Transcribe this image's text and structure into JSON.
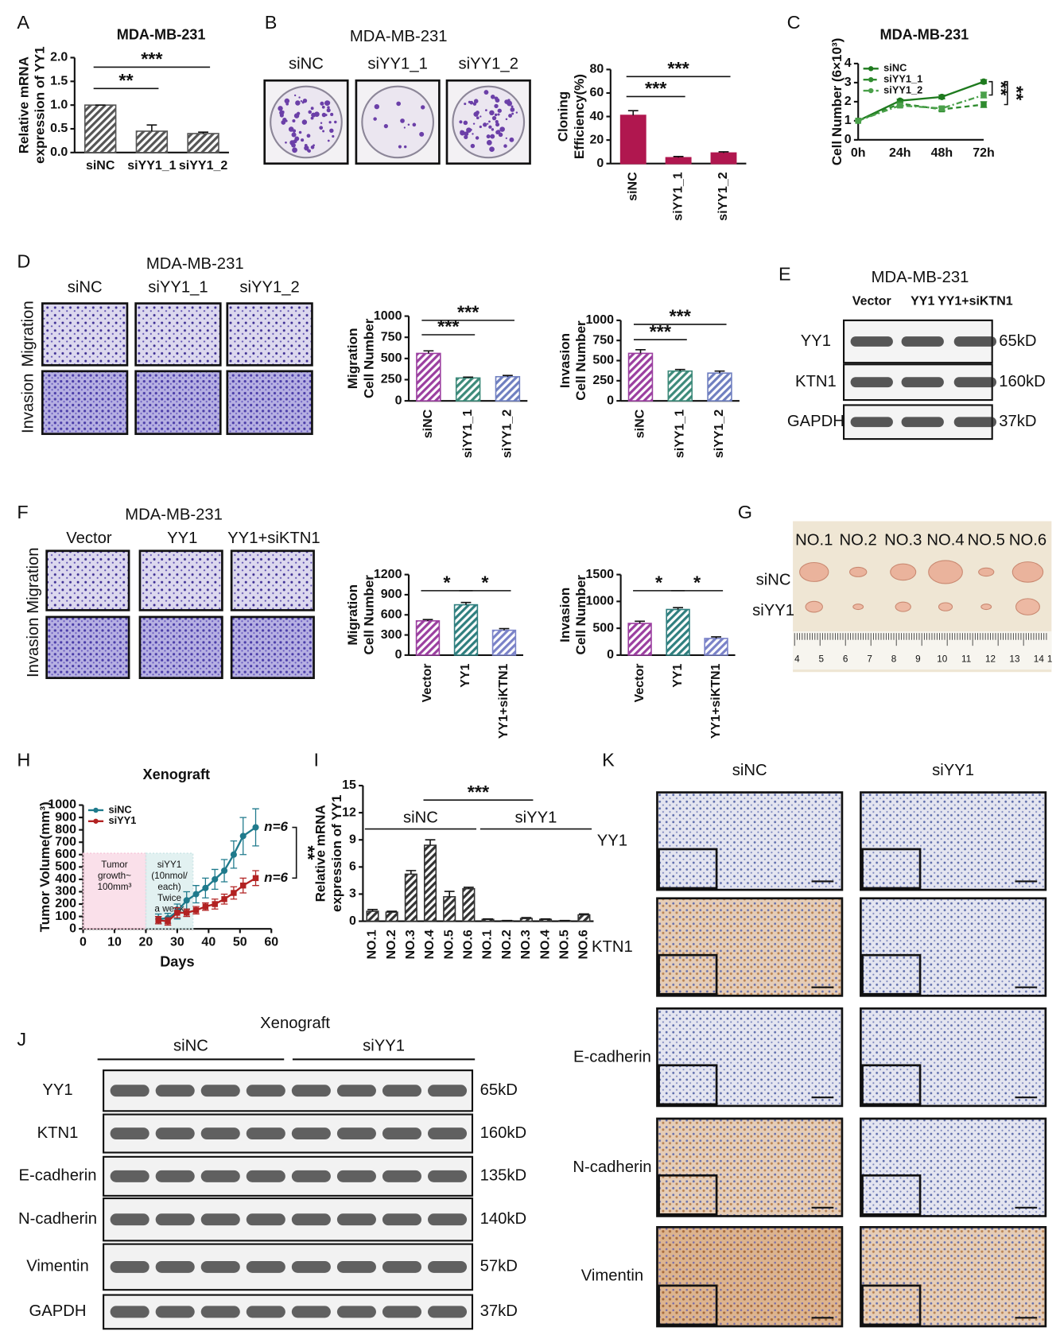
{
  "chart_data": [
    {
      "type": "bar",
      "title": "MDA-MB-231",
      "ylabel": [
        "Relative mRNA",
        "expression of YY1"
      ],
      "categories": [
        "siNC",
        "siYY1_1",
        "siYY1_2"
      ],
      "values": [
        1,
        0.45,
        0.4
      ],
      "errors": [
        0,
        0.13,
        0.03
      ],
      "color": "#555555",
      "hatched": true,
      "ylim": [
        0,
        2
      ],
      "yticks": [
        {
          "value": 0,
          "label": "0.0"
        },
        {
          "value": 0.5,
          "label": "0.5"
        },
        {
          "value": 1,
          "label": "1.0"
        },
        {
          "value": 1.5,
          "label": "1.5"
        },
        {
          "value": 2,
          "label": "2.0"
        }
      ],
      "annotations": [
        "**",
        "***"
      ]
    },
    {
      "type": "bar",
      "ylabel": [
        "Cloning",
        "Efficiency(%)"
      ],
      "categories": [
        "siNC",
        "siYY1_1",
        "siYY1_2"
      ],
      "values": [
        41,
        5,
        9
      ],
      "errors": [
        4,
        1,
        1
      ],
      "color": "#b0174f",
      "hatched": false,
      "ylim": [
        0,
        80
      ],
      "yticks": [
        0,
        20,
        40,
        60,
        80
      ],
      "annotations": [
        "***",
        "***"
      ]
    },
    {
      "type": "line",
      "title": "MDA-MB-231",
      "ylabel": "Cell Number (6×10³)",
      "categories": [
        "0h",
        "24h",
        "48h",
        "72h"
      ],
      "legend": "upper left",
      "series": [
        {
          "name": "siNC",
          "color": "#1e7a1e",
          "dash": "solid",
          "values": [
            1,
            2.05,
            2.25,
            3.05
          ],
          "errors": [
            0,
            0.08,
            0.1,
            0.1
          ]
        },
        {
          "name": "siYY1_1",
          "color": "#2e8b2e",
          "dash": "dashed",
          "values": [
            1,
            1.9,
            1.6,
            1.85
          ],
          "errors": [
            0,
            0.08,
            0.1,
            0.15
          ]
        },
        {
          "name": "siYY1_2",
          "color": "#4aa04a",
          "dash": "dashdot",
          "values": [
            1,
            1.8,
            1.65,
            2.35
          ],
          "errors": [
            0,
            0.1,
            0.1,
            0.15
          ]
        }
      ],
      "ylim": [
        0,
        4
      ],
      "yticks": [
        0,
        1,
        2,
        3,
        4
      ],
      "annotations": [
        "**",
        "**"
      ]
    },
    {
      "type": "bar",
      "ylabel": [
        "Migration",
        "Cell Number"
      ],
      "categories": [
        "siNC",
        "siYY1_1",
        "siYY1_2"
      ],
      "values": [
        560,
        270,
        285
      ],
      "errors": [
        30,
        10,
        15
      ],
      "colors": [
        "#9b3fa0",
        "#3d8a7a",
        "#6f7fc0"
      ],
      "hatched": true,
      "ylim": [
        0,
        1000
      ],
      "yticks": [
        0,
        250,
        500,
        750,
        1000
      ],
      "annotations": [
        "***",
        "***"
      ]
    },
    {
      "type": "bar",
      "ylabel": [
        "Invasion",
        "Cell Number"
      ],
      "categories": [
        "siNC",
        "siYY1_1",
        "siYY1_2"
      ],
      "values": [
        590,
        370,
        345
      ],
      "errors": [
        45,
        20,
        25
      ],
      "colors": [
        "#9b3fa0",
        "#3d8a7a",
        "#6f7fc0"
      ],
      "hatched": true,
      "ylim": [
        0,
        1000
      ],
      "yticks": [
        0,
        250,
        500,
        750,
        1000
      ],
      "annotations": [
        "***",
        "***"
      ]
    },
    {
      "type": "bar",
      "ylabel": [
        "Migration",
        "Cell Number"
      ],
      "categories": [
        "Vector",
        "YY1",
        "YY1+siKTN1"
      ],
      "values": [
        510,
        750,
        370
      ],
      "errors": [
        20,
        35,
        25
      ],
      "colors": [
        "#9b3fa0",
        "#2f7f7f",
        "#7a82c8"
      ],
      "hatched": true,
      "ylim": [
        0,
        1200
      ],
      "yticks": [
        0,
        300,
        600,
        900,
        1200
      ],
      "annotations": [
        "*",
        "*"
      ]
    },
    {
      "type": "bar",
      "ylabel": [
        "Invasion",
        "Cell Number"
      ],
      "categories": [
        "Vector",
        "YY1",
        "YY1+siKTN1"
      ],
      "values": [
        590,
        850,
        310
      ],
      "errors": [
        40,
        35,
        30
      ],
      "colors": [
        "#9b3fa0",
        "#2f7f7f",
        "#7a82c8"
      ],
      "hatched": true,
      "ylim": [
        0,
        1500
      ],
      "yticks": [
        0,
        500,
        1000,
        1500
      ],
      "annotations": [
        "*",
        "*"
      ]
    },
    {
      "type": "line",
      "title": "Xenograft",
      "ylabel": "Tumor Volume(mm³)",
      "xlabel": "Days",
      "legend": "upper left",
      "x": [
        24,
        27,
        30,
        33,
        36,
        39,
        42,
        45,
        48,
        51,
        55
      ],
      "series": [
        {
          "name": "siNC",
          "color": "#1f7a8c",
          "dash": "solid",
          "values": [
            80,
            85,
            140,
            230,
            280,
            330,
            400,
            470,
            600,
            750,
            820
          ],
          "errors": [
            40,
            40,
            60,
            70,
            70,
            80,
            80,
            90,
            110,
            150,
            150
          ]
        },
        {
          "name": "siYY1",
          "color": "#b22222",
          "dash": "solid",
          "values": [
            70,
            60,
            130,
            130,
            150,
            180,
            200,
            240,
            290,
            350,
            410
          ],
          "errors": [
            30,
            30,
            40,
            30,
            30,
            30,
            40,
            40,
            50,
            60,
            60
          ]
        }
      ],
      "xlim": [
        0,
        60
      ],
      "xticks": [
        0,
        10,
        20,
        30,
        40,
        50,
        60
      ],
      "ylim": [
        0,
        1000
      ],
      "yticks": [
        0,
        100,
        200,
        300,
        400,
        500,
        600,
        700,
        800,
        900,
        1000
      ],
      "regions": [
        {
          "x": [
            0,
            20
          ],
          "y": [
            0,
            610
          ],
          "color": "#f6cbdc",
          "text": [
            "Tumor",
            "growth~",
            "100mm³"
          ]
        },
        {
          "x": [
            20,
            35
          ],
          "y": [
            0,
            610
          ],
          "color": "#cfe7e8",
          "text": [
            "siYY1",
            "(10nmol/",
            "each)",
            "Twice",
            "a week"
          ]
        }
      ],
      "annotations": [
        "n=6",
        "n=6",
        "**"
      ]
    },
    {
      "type": "bar",
      "ylabel": [
        "Relative mRNA",
        "expression of YY1"
      ],
      "categories": [
        "NO.1",
        "NO.2",
        "NO.3",
        "NO.4",
        "NO.5",
        "NO.6",
        "NO.1",
        "NO.2",
        "NO.3",
        "NO.4",
        "NO.5",
        "NO.6"
      ],
      "values": [
        1.1,
        1.0,
        5.2,
        8.4,
        2.7,
        3.6,
        0.2,
        0.05,
        0.3,
        0.2,
        0.05,
        0.7
      ],
      "errors": [
        0.2,
        0.1,
        0.4,
        0.6,
        0.6,
        0.15,
        0.05,
        0.03,
        0.1,
        0.05,
        0.03,
        0.1
      ],
      "color": "#333333",
      "hatched": true,
      "ylim": [
        0,
        15
      ],
      "yticks": [
        0,
        3,
        6,
        9,
        12,
        15
      ],
      "group_labels": [
        "siNC",
        "siYY1"
      ],
      "annotations": [
        "***"
      ]
    }
  ],
  "panels": {
    "letters": [
      "A",
      "B",
      "C",
      "D",
      "E",
      "F",
      "G",
      "H",
      "I",
      "J",
      "K"
    ],
    "B": {
      "title": "MDA-MB-231",
      "columns": [
        "siNC",
        "siYY1_1",
        "siYY1_2"
      ]
    },
    "D": {
      "title": "MDA-MB-231",
      "columns": [
        "siNC",
        "siYY1_1",
        "siYY1_2"
      ],
      "rows": [
        "Migration",
        "Invasion"
      ]
    },
    "E": {
      "title": "MDA-MB-231",
      "columns": [
        "Vector",
        "YY1",
        "YY1+siKTN1"
      ],
      "rows": [
        "YY1",
        "KTN1",
        "GAPDH"
      ],
      "sizes": [
        "65kD",
        "160kD",
        "37kD"
      ]
    },
    "F": {
      "title": "MDA-MB-231",
      "columns": [
        "Vector",
        "YY1",
        "YY1+siKTN1"
      ],
      "rows": [
        "Migration",
        "Invasion"
      ]
    },
    "G": {
      "columns": [
        "NO.1",
        "NO.2",
        "NO.3",
        "NO.4",
        "NO.5",
        "NO.6"
      ],
      "rows": [
        "siNC",
        "siYY1"
      ],
      "ruler": [
        "4",
        "5",
        "6",
        "7",
        "8",
        "9",
        "10",
        "11",
        "12",
        "13",
        "14",
        "1"
      ]
    },
    "J": {
      "title": "Xenograft",
      "groups": [
        "siNC",
        "siYY1"
      ],
      "rows": [
        "YY1",
        "KTN1",
        "E-cadherin",
        "N-cadherin",
        "Vimentin",
        "GAPDH"
      ],
      "sizes": [
        "65kD",
        "160kD",
        "135kD",
        "140kD",
        "57kD",
        "37kD"
      ]
    },
    "K": {
      "columns": [
        "siNC",
        "siYY1"
      ],
      "rows": [
        "YY1",
        "KTN1",
        "E-cadherin",
        "N-cadherin",
        "Vimentin"
      ]
    }
  }
}
